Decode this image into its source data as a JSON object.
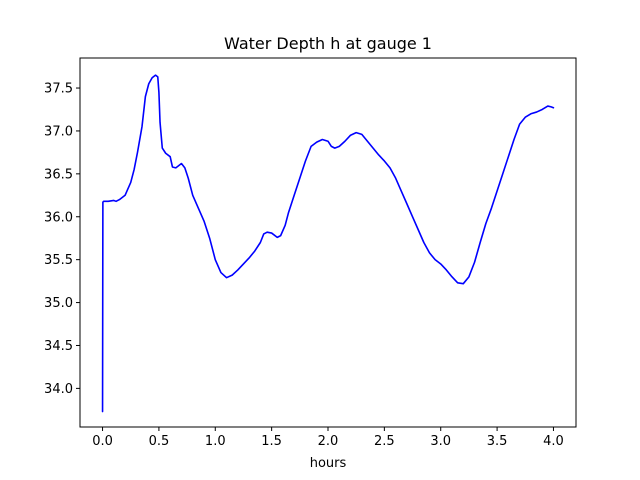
{
  "chart_data": {
    "type": "line",
    "title": "Water Depth h at gauge 1",
    "xlabel": "hours",
    "ylabel": "",
    "xlim": [
      -0.2,
      4.2
    ],
    "ylim": [
      33.55,
      37.85
    ],
    "xticks": [
      0.0,
      0.5,
      1.0,
      1.5,
      2.0,
      2.5,
      3.0,
      3.5,
      4.0
    ],
    "xtick_labels": [
      "0.0",
      "0.5",
      "1.0",
      "1.5",
      "2.0",
      "2.5",
      "3.0",
      "3.5",
      "4.0"
    ],
    "yticks": [
      34.0,
      34.5,
      35.0,
      35.5,
      36.0,
      36.5,
      37.0,
      37.5
    ],
    "ytick_labels": [
      "34.0",
      "34.5",
      "35.0",
      "35.5",
      "36.0",
      "36.5",
      "37.0",
      "37.5"
    ],
    "grid": false,
    "legend": "none",
    "series": [
      {
        "color": "#0000ff",
        "x": [
          0.0,
          0.003,
          0.01,
          0.05,
          0.1,
          0.12,
          0.15,
          0.2,
          0.25,
          0.28,
          0.31,
          0.35,
          0.38,
          0.41,
          0.44,
          0.47,
          0.49,
          0.5,
          0.51,
          0.53,
          0.56,
          0.6,
          0.62,
          0.65,
          0.7,
          0.73,
          0.76,
          0.8,
          0.85,
          0.9,
          0.95,
          1.0,
          1.05,
          1.1,
          1.15,
          1.2,
          1.25,
          1.3,
          1.35,
          1.4,
          1.43,
          1.46,
          1.5,
          1.55,
          1.58,
          1.62,
          1.65,
          1.7,
          1.75,
          1.8,
          1.85,
          1.9,
          1.95,
          2.0,
          2.03,
          2.06,
          2.1,
          2.15,
          2.2,
          2.25,
          2.3,
          2.35,
          2.4,
          2.45,
          2.5,
          2.55,
          2.6,
          2.65,
          2.7,
          2.75,
          2.8,
          2.85,
          2.9,
          2.95,
          3.0,
          3.05,
          3.1,
          3.15,
          3.2,
          3.25,
          3.3,
          3.35,
          3.4,
          3.45,
          3.5,
          3.55,
          3.6,
          3.65,
          3.7,
          3.75,
          3.8,
          3.85,
          3.9,
          3.95,
          3.98,
          4.0
        ],
        "y": [
          33.73,
          36.17,
          36.18,
          36.18,
          36.19,
          36.18,
          36.2,
          36.25,
          36.4,
          36.55,
          36.75,
          37.05,
          37.4,
          37.55,
          37.62,
          37.65,
          37.63,
          37.45,
          37.1,
          36.8,
          36.74,
          36.7,
          36.58,
          36.57,
          36.62,
          36.57,
          36.45,
          36.25,
          36.1,
          35.95,
          35.75,
          35.5,
          35.35,
          35.29,
          35.32,
          35.38,
          35.45,
          35.52,
          35.6,
          35.7,
          35.8,
          35.82,
          35.81,
          35.76,
          35.78,
          35.9,
          36.05,
          36.25,
          36.45,
          36.65,
          36.82,
          36.87,
          36.9,
          36.88,
          36.82,
          36.8,
          36.82,
          36.88,
          36.95,
          36.98,
          36.96,
          36.88,
          36.8,
          36.72,
          36.65,
          36.57,
          36.45,
          36.3,
          36.15,
          36.0,
          35.85,
          35.7,
          35.58,
          35.5,
          35.45,
          35.38,
          35.3,
          35.23,
          35.22,
          35.3,
          35.47,
          35.7,
          35.92,
          36.1,
          36.3,
          36.5,
          36.7,
          36.9,
          37.08,
          37.16,
          37.2,
          37.22,
          37.25,
          37.29,
          37.28,
          37.27
        ]
      }
    ]
  }
}
